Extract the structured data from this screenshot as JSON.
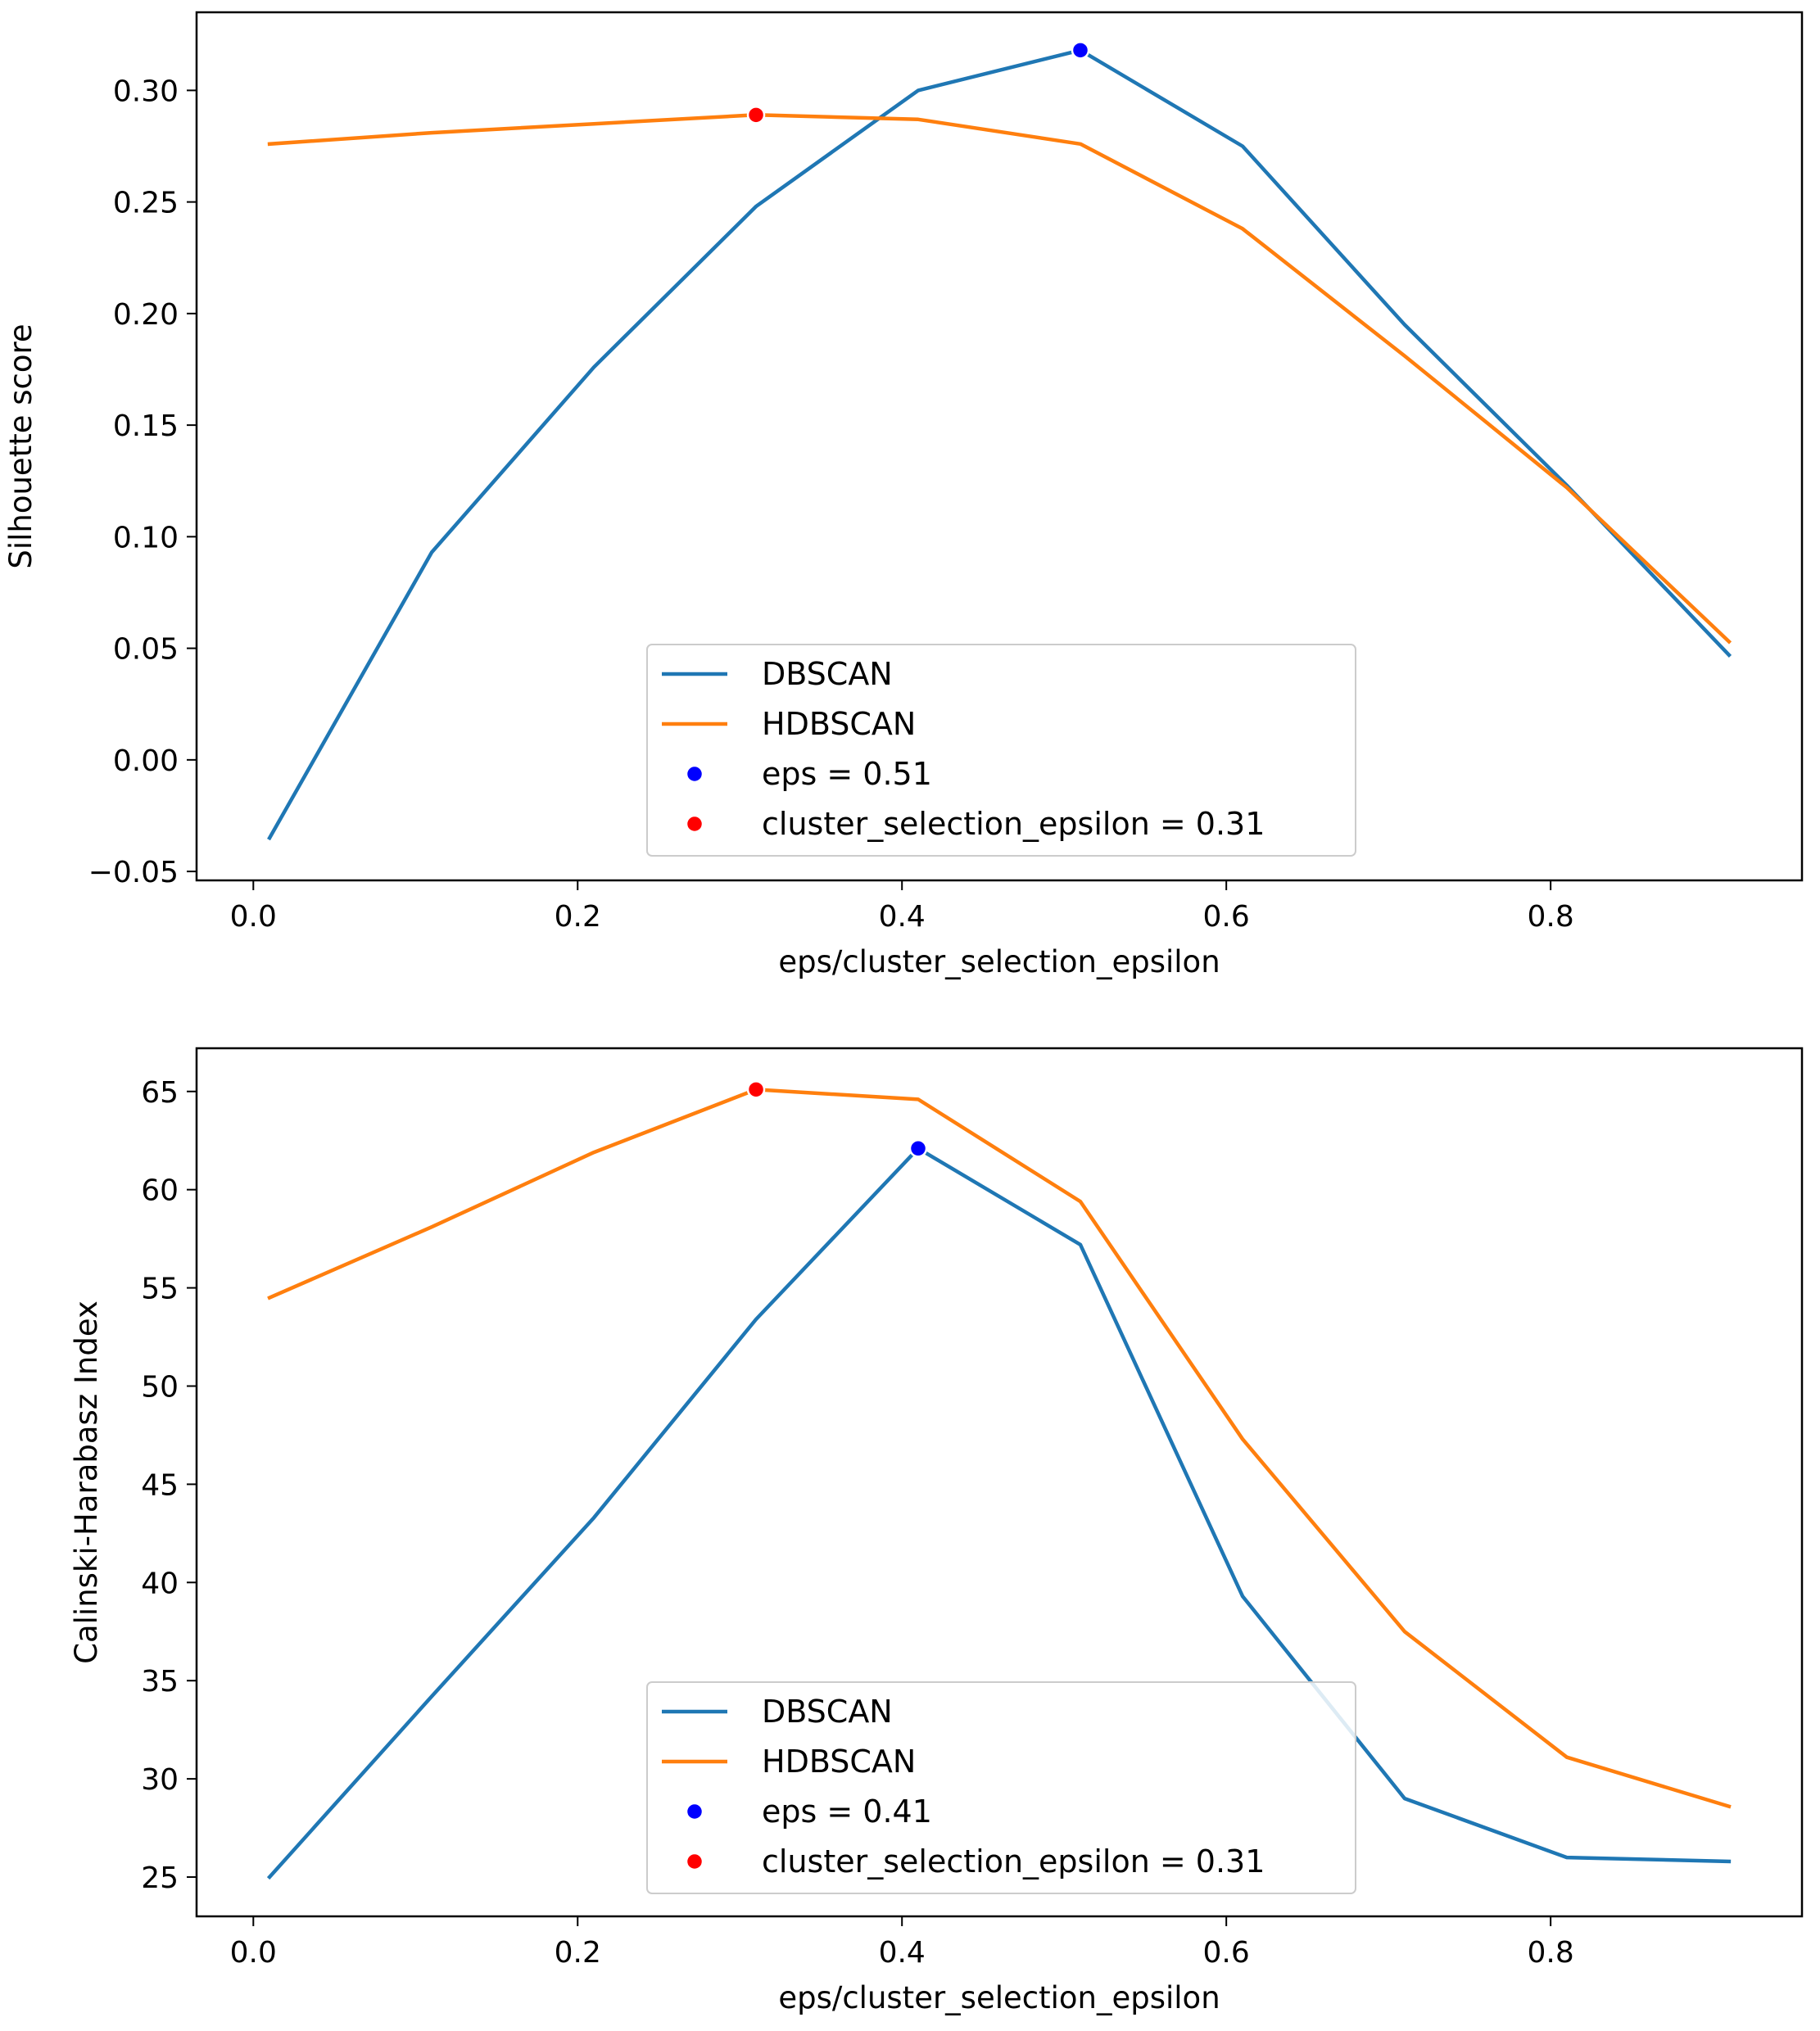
{
  "colors": {
    "dbscan": "#1f77b4",
    "hdbscan": "#ff7f0e",
    "best_eps_marker": "#0000ff",
    "best_cse_marker": "#ff0000",
    "axes": "#000000",
    "legend_border": "#cccccc"
  },
  "chart_data": [
    {
      "type": "line",
      "xlabel": "eps/cluster_selection_epsilon",
      "ylabel": "Silhouette score",
      "xlim": [
        -0.035,
        0.955
      ],
      "ylim": [
        -0.054,
        0.335
      ],
      "xticks": [
        0.0,
        0.2,
        0.4,
        0.6,
        0.8
      ],
      "xtick_labels": [
        "0.0",
        "0.2",
        "0.4",
        "0.6",
        "0.8"
      ],
      "yticks": [
        -0.05,
        0.0,
        0.05,
        0.1,
        0.15,
        0.2,
        0.25,
        0.3
      ],
      "ytick_labels": [
        "−0.05",
        "0.00",
        "0.05",
        "0.10",
        "0.15",
        "0.20",
        "0.25",
        "0.30"
      ],
      "x": [
        0.01,
        0.11,
        0.21,
        0.31,
        0.41,
        0.51,
        0.61,
        0.71,
        0.81,
        0.91
      ],
      "series": [
        {
          "name": "DBSCAN",
          "values": [
            -0.035,
            0.093,
            0.176,
            0.248,
            0.3,
            0.318,
            0.275,
            0.195,
            0.123,
            0.047
          ]
        },
        {
          "name": "HDBSCAN",
          "values": [
            0.276,
            0.281,
            0.285,
            0.289,
            0.287,
            0.276,
            0.238,
            0.181,
            0.122,
            0.053
          ]
        }
      ],
      "markers": [
        {
          "name": "eps = 0.51",
          "x": 0.51,
          "y": 0.318,
          "color": "#0000ff"
        },
        {
          "name": "cluster_selection_epsilon = 0.31",
          "x": 0.31,
          "y": 0.289,
          "color": "#ff0000"
        }
      ],
      "legend": {
        "placement": "lower-center",
        "entries": [
          "DBSCAN",
          "HDBSCAN",
          "eps = 0.51",
          "cluster_selection_epsilon = 0.31"
        ]
      },
      "grid": false
    },
    {
      "type": "line",
      "xlabel": "eps/cluster_selection_epsilon",
      "ylabel": "Calinski-Harabasz Index",
      "xlim": [
        -0.035,
        0.955
      ],
      "ylim": [
        23.0,
        67.2
      ],
      "xticks": [
        0.0,
        0.2,
        0.4,
        0.6,
        0.8
      ],
      "xtick_labels": [
        "0.0",
        "0.2",
        "0.4",
        "0.6",
        "0.8"
      ],
      "yticks": [
        25,
        30,
        35,
        40,
        45,
        50,
        55,
        60,
        65
      ],
      "ytick_labels": [
        "25",
        "30",
        "35",
        "40",
        "45",
        "50",
        "55",
        "60",
        "65"
      ],
      "x": [
        0.01,
        0.11,
        0.21,
        0.31,
        0.41,
        0.51,
        0.61,
        0.71,
        0.81,
        0.91
      ],
      "series": [
        {
          "name": "DBSCAN",
          "values": [
            25.0,
            34.2,
            43.3,
            53.4,
            62.1,
            57.2,
            39.3,
            29.0,
            26.0,
            25.8
          ]
        },
        {
          "name": "HDBSCAN",
          "values": [
            54.5,
            58.1,
            61.9,
            65.1,
            64.6,
            59.4,
            47.3,
            37.5,
            31.1,
            28.6
          ]
        }
      ],
      "markers": [
        {
          "name": "eps = 0.41",
          "x": 0.41,
          "y": 62.1,
          "color": "#0000ff"
        },
        {
          "name": "cluster_selection_epsilon = 0.31",
          "x": 0.31,
          "y": 65.1,
          "color": "#ff0000"
        }
      ],
      "legend": {
        "placement": "lower-center",
        "entries": [
          "DBSCAN",
          "HDBSCAN",
          "eps = 0.41",
          "cluster_selection_epsilon = 0.31"
        ]
      },
      "grid": false
    }
  ]
}
